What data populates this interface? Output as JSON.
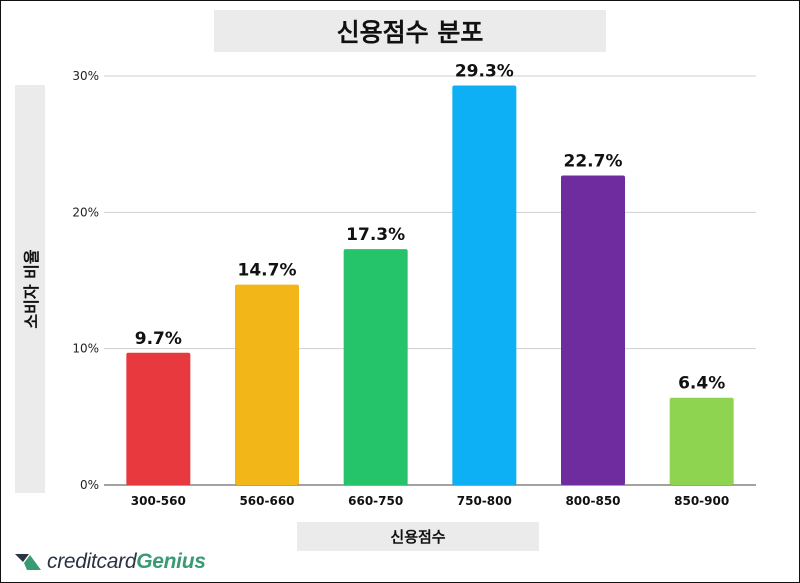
{
  "chart_data": {
    "type": "bar",
    "title": "신용점수 분포",
    "xlabel": "신용점수",
    "ylabel": "소비자 비율",
    "categories": [
      "300-560",
      "560-660",
      "660-750",
      "750-800",
      "800-850",
      "850-900"
    ],
    "values": [
      9.7,
      14.7,
      17.3,
      29.3,
      22.7,
      6.4
    ],
    "data_labels": [
      "9.7%",
      "14.7%",
      "17.3%",
      "29.3%",
      "22.7%",
      "6.4%"
    ],
    "colors": [
      "#e8393e",
      "#f2b619",
      "#25c46a",
      "#0db0f4",
      "#6f2c9e",
      "#8fd451"
    ],
    "ylim": [
      0,
      30
    ],
    "yticks": [
      0,
      10,
      20,
      30
    ],
    "ytick_labels": [
      "0%",
      "10%",
      "20%",
      "30%"
    ],
    "grid": true,
    "legend": "none"
  },
  "logo": {
    "text_a": "creditcard",
    "text_b": "Genius",
    "colors": {
      "a": "#2a3342",
      "b": "#3a9a74"
    }
  }
}
